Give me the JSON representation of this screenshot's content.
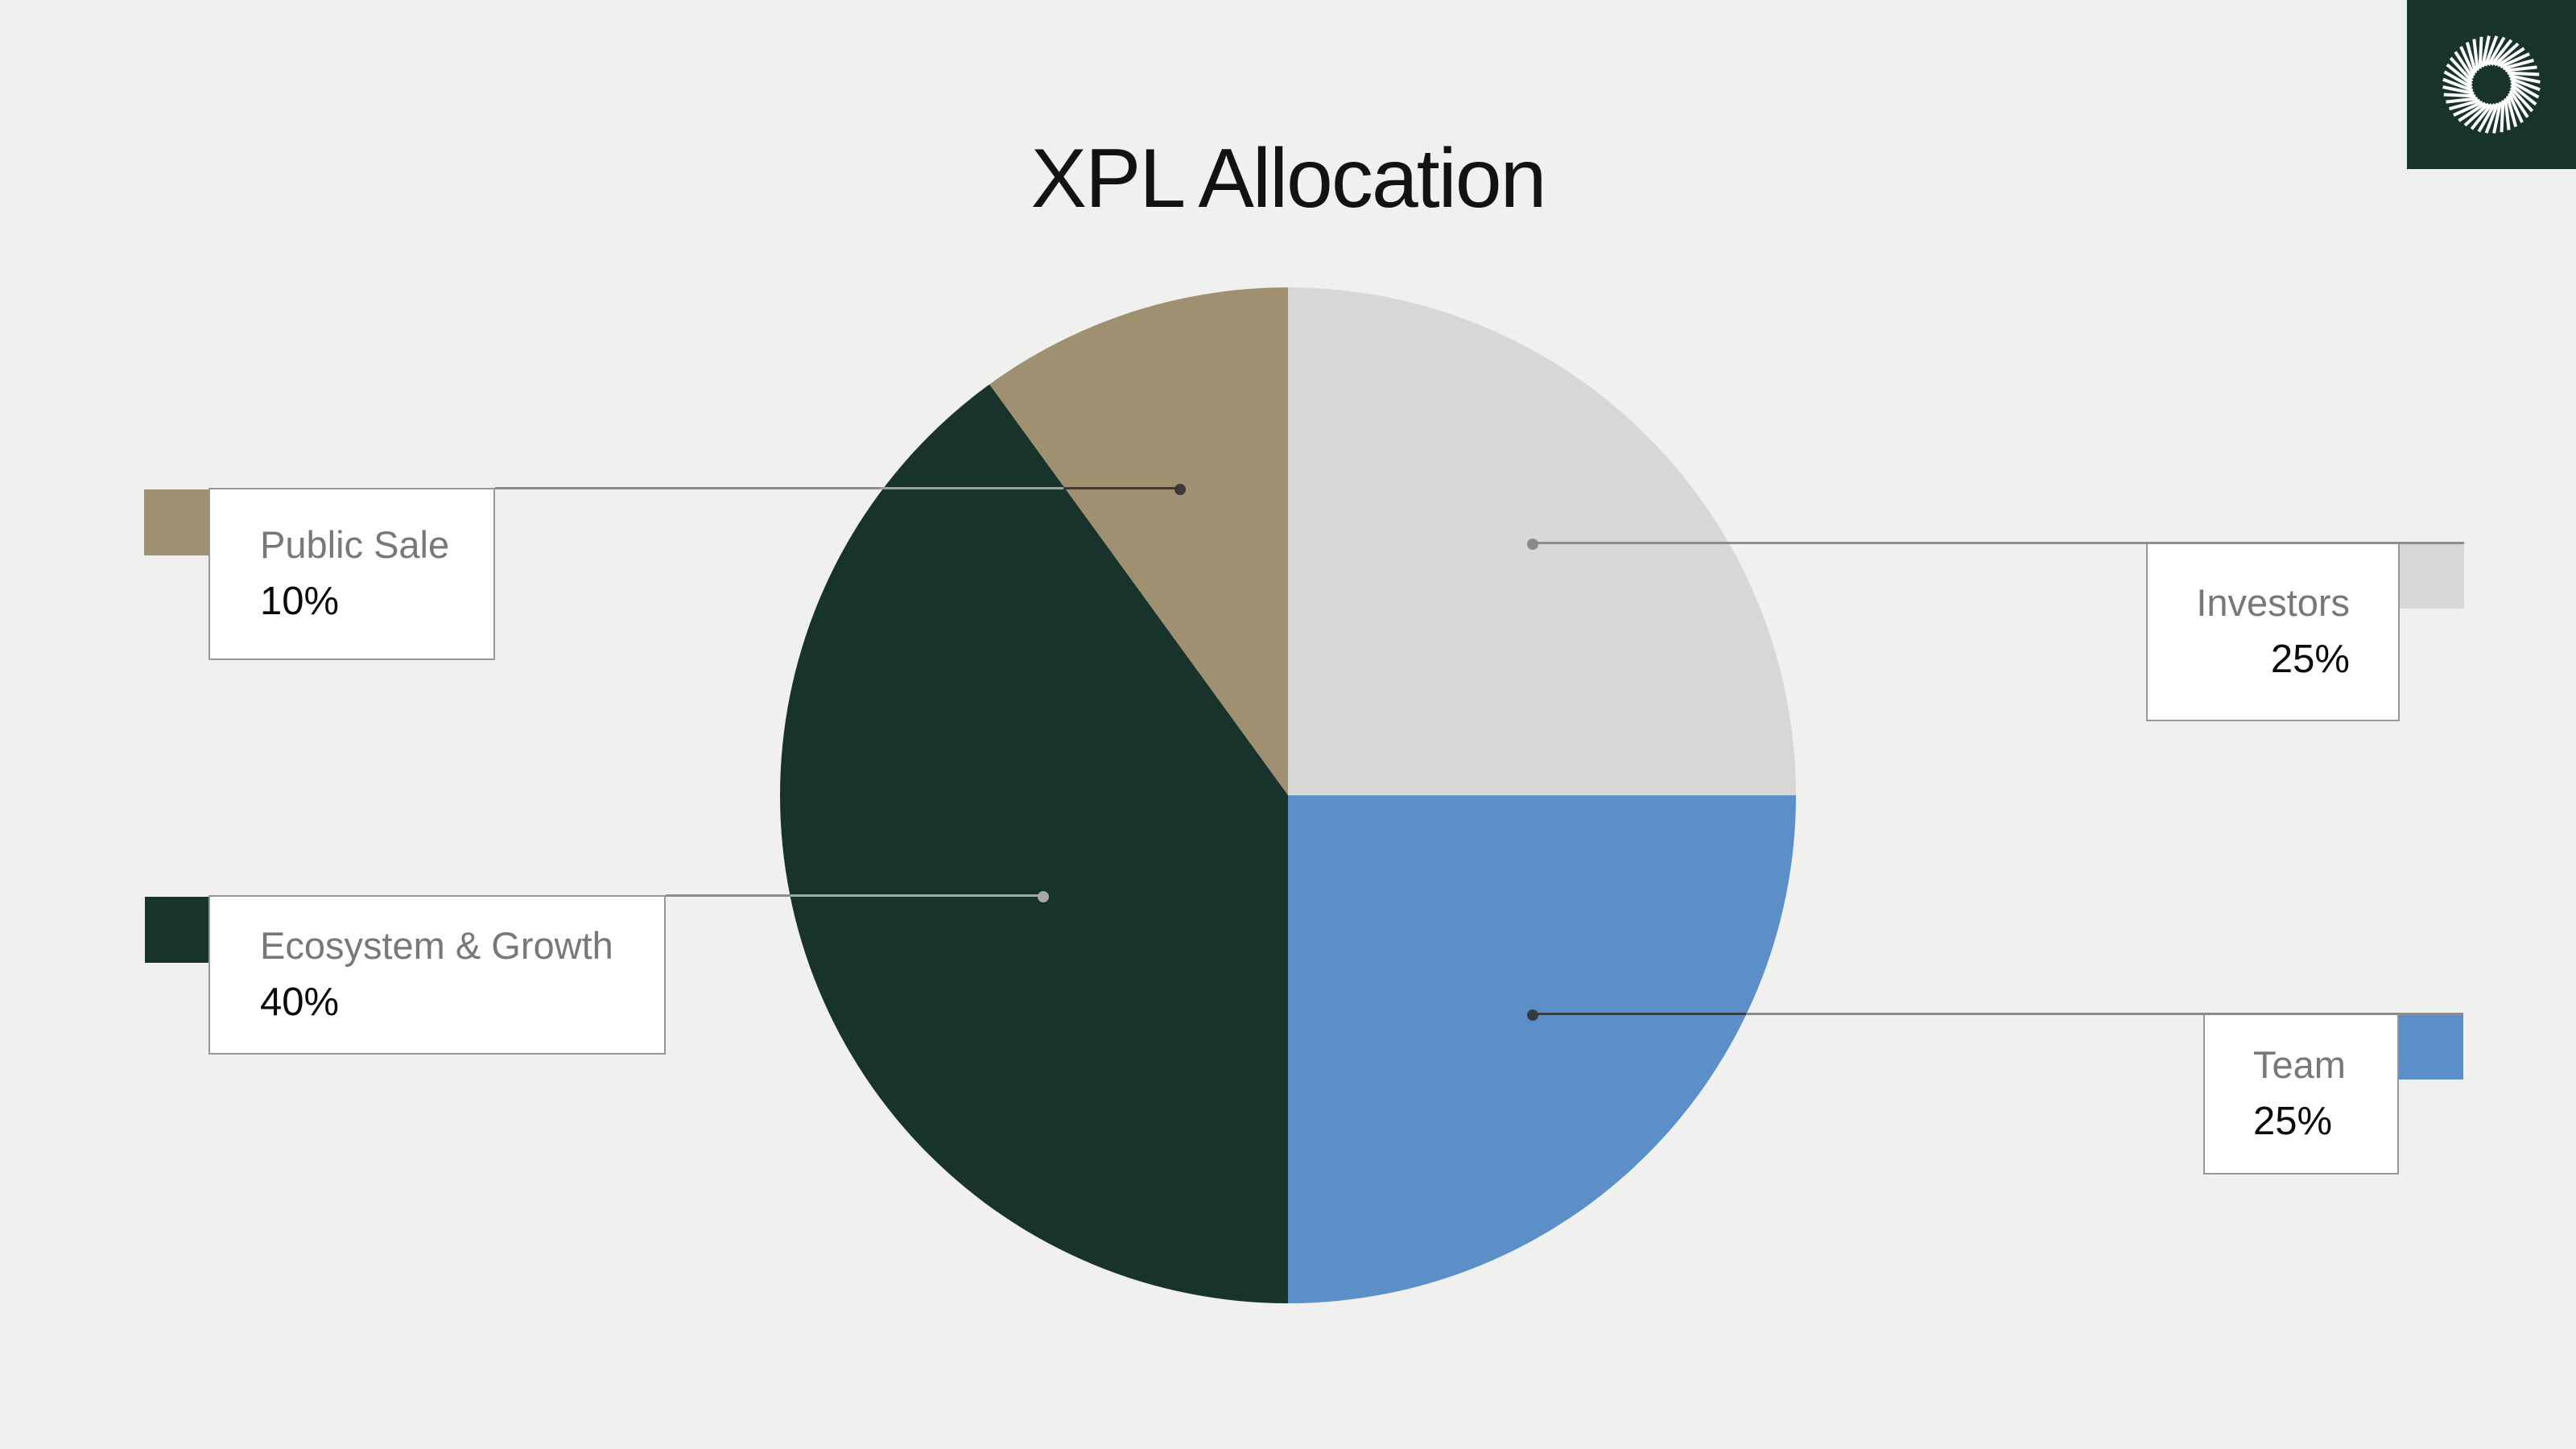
{
  "chart_data": {
    "type": "pie",
    "title": "XPL Allocation",
    "start_angle_deg": 0,
    "direction": "clockwise",
    "legend_position": "callout-cards-with-leader-lines",
    "slices": [
      {
        "label": "Investors",
        "value_pct": 25,
        "value_label": "25%",
        "color": "#D7D7D5"
      },
      {
        "label": "Team",
        "value_pct": 25,
        "value_label": "25%",
        "color": "#5C8FC7"
      },
      {
        "label": "Ecosystem & Growth",
        "value_pct": 40,
        "value_label": "40%",
        "color": "#17332B"
      },
      {
        "label": "Public Sale",
        "value_pct": 10,
        "value_label": "10%",
        "color": "#9E9070"
      }
    ]
  },
  "brand": {
    "logo_icon": "sunburst-icon",
    "logo_bg": "#17332B",
    "logo_fg": "#FFFFFF"
  },
  "page": {
    "background": "#F0F0EE",
    "card_border": "#979797",
    "label_color": "#787878",
    "value_color": "#0A0A0A"
  }
}
